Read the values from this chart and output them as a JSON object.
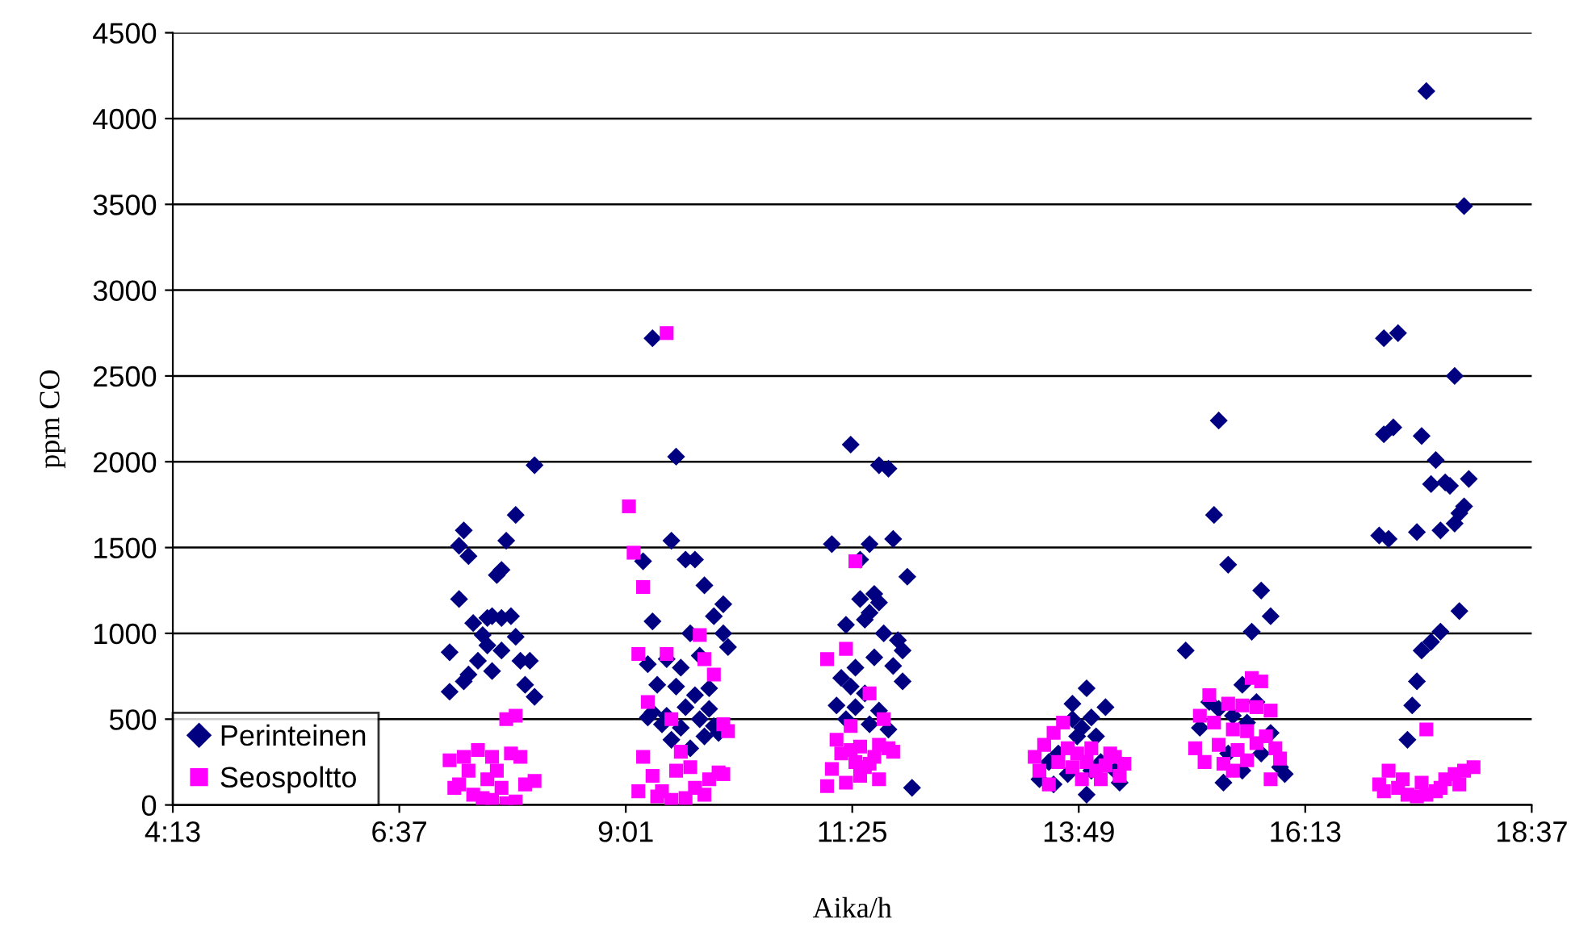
{
  "chart_data": {
    "type": "scatter",
    "xlabel": "Aika/h",
    "ylabel": "ppm CO",
    "xlim": [
      4.2167,
      18.6167
    ],
    "xticks": [
      {
        "value": 4.2167,
        "label": "4:13"
      },
      {
        "value": 6.6167,
        "label": "6:37"
      },
      {
        "value": 9.0167,
        "label": "9:01"
      },
      {
        "value": 11.4167,
        "label": "11:25"
      },
      {
        "value": 13.8167,
        "label": "13:49"
      },
      {
        "value": 16.2167,
        "label": "16:13"
      },
      {
        "value": 18.6167,
        "label": "18:37"
      }
    ],
    "ylim": [
      0,
      4500
    ],
    "yticks": [
      0,
      500,
      1000,
      1500,
      2000,
      2500,
      3000,
      3500,
      4000,
      4500
    ],
    "grid": "y",
    "legend": "bottom left",
    "series": [
      {
        "name": "Perinteinen",
        "color": "#000080",
        "marker": "diamond",
        "x": [
          8.05,
          7.85,
          7.3,
          7.25,
          7.35,
          7.75,
          7.65,
          7.7,
          7.25,
          7.4,
          7.55,
          7.7,
          7.8,
          7.6,
          7.85,
          7.15,
          7.35,
          7.45,
          7.55,
          7.7,
          7.9,
          8.0,
          7.3,
          7.6,
          7.95,
          7.15,
          8.05,
          7.5,
          9.3,
          9.55,
          9.2,
          9.3,
          9.5,
          9.65,
          9.75,
          9.85,
          9.7,
          9.95,
          10.05,
          10.1,
          10.05,
          9.25,
          9.45,
          9.6,
          9.8,
          9.35,
          9.55,
          9.75,
          9.9,
          9.3,
          9.45,
          9.65,
          9.8,
          9.6,
          9.4,
          9.95,
          9.5,
          9.7,
          9.85,
          10.0,
          9.25,
          9.9,
          11.4,
          11.7,
          11.8,
          11.2,
          11.6,
          11.85,
          11.5,
          12.0,
          11.5,
          11.65,
          11.7,
          11.55,
          11.6,
          11.35,
          11.75,
          11.9,
          11.95,
          11.45,
          11.3,
          11.65,
          11.85,
          11.4,
          11.55,
          11.25,
          11.45,
          11.7,
          11.35,
          11.6,
          11.8,
          12.05,
          11.95,
          13.9,
          14.1,
          13.75,
          13.95,
          13.85,
          14.0,
          13.8,
          13.6,
          13.4,
          13.5,
          13.7,
          13.95,
          14.2,
          14.05,
          13.9,
          13.55,
          14.25,
          13.75,
          15.3,
          15.25,
          15.4,
          15.75,
          15.85,
          15.65,
          14.95,
          15.55,
          15.2,
          15.3,
          15.6,
          15.45,
          15.85,
          15.75,
          15.1,
          15.4,
          15.55,
          15.35,
          15.95,
          15.7,
          16.0,
          17.5,
          17.9,
          17.05,
          17.2,
          17.8,
          17.05,
          17.15,
          17.45,
          17.4,
          17.0,
          17.1,
          17.6,
          17.7,
          17.75,
          17.8,
          17.85,
          17.9,
          17.95,
          17.65,
          17.55,
          17.85,
          17.65,
          17.55,
          17.45,
          17.4,
          17.35,
          17.3
        ],
        "values": [
          1980,
          1690,
          1600,
          1510,
          1450,
          1540,
          1340,
          1370,
          1200,
          1060,
          1090,
          1090,
          1100,
          1100,
          980,
          890,
          760,
          840,
          930,
          900,
          840,
          840,
          720,
          780,
          700,
          660,
          630,
          990,
          2720,
          2030,
          1420,
          1070,
          1540,
          1430,
          1430,
          1280,
          1000,
          1100,
          1170,
          920,
          1000,
          820,
          850,
          800,
          870,
          700,
          690,
          640,
          680,
          540,
          520,
          570,
          500,
          450,
          470,
          460,
          380,
          330,
          400,
          420,
          510,
          560,
          2100,
          1980,
          1960,
          1520,
          1520,
          1550,
          1430,
          1330,
          1200,
          1230,
          1180,
          1080,
          1120,
          1050,
          1000,
          960,
          900,
          800,
          740,
          860,
          810,
          690,
          650,
          580,
          570,
          550,
          500,
          470,
          440,
          100,
          720,
          680,
          570,
          590,
          510,
          450,
          400,
          400,
          300,
          150,
          250,
          180,
          200,
          200,
          250,
          60,
          120,
          130,
          500,
          2240,
          1690,
          1400,
          1250,
          1100,
          1010,
          900,
          700,
          600,
          560,
          480,
          520,
          420,
          300,
          450,
          300,
          200,
          130,
          220,
          600,
          180,
          4160,
          3490,
          2720,
          2750,
          2500,
          2160,
          2200,
          2150,
          1590,
          1570,
          1550,
          2010,
          1880,
          1860,
          1640,
          1700,
          1740,
          1900,
          1600,
          1870,
          1130,
          1010,
          950,
          900,
          720,
          580,
          380
        ]
      },
      {
        "name": "Seospoltto",
        "color": "#ff00ff",
        "marker": "square",
        "x": [
          7.75,
          7.85,
          7.15,
          7.3,
          7.45,
          7.6,
          7.8,
          7.9,
          7.35,
          7.55,
          7.7,
          7.25,
          7.4,
          7.6,
          7.85,
          7.95,
          8.05,
          7.5,
          7.75,
          7.2,
          7.65,
          9.45,
          9.05,
          9.1,
          9.2,
          9.15,
          9.45,
          9.8,
          9.85,
          9.95,
          9.25,
          9.5,
          9.2,
          9.6,
          10.05,
          10.1,
          9.3,
          9.15,
          9.35,
          9.5,
          9.65,
          9.75,
          9.9,
          10.0,
          9.85,
          9.4,
          9.55,
          10.05,
          9.7,
          11.45,
          11.15,
          11.35,
          11.6,
          11.75,
          11.4,
          11.7,
          11.25,
          11.5,
          11.3,
          11.45,
          11.55,
          11.65,
          11.8,
          11.2,
          11.35,
          11.5,
          11.7,
          11.15,
          11.85,
          11.6,
          11.4,
          13.65,
          13.55,
          13.45,
          13.35,
          13.4,
          13.6,
          13.7,
          13.8,
          13.9,
          14.0,
          14.1,
          14.2,
          14.3,
          13.85,
          14.05,
          14.25,
          13.5,
          13.75,
          14.15,
          13.95,
          15.65,
          15.75,
          15.2,
          15.4,
          15.55,
          15.7,
          15.85,
          15.1,
          15.25,
          15.45,
          15.6,
          15.8,
          15.05,
          15.3,
          15.5,
          15.7,
          15.9,
          15.15,
          15.35,
          15.6,
          15.95,
          15.85,
          15.45,
          17.5,
          17.0,
          17.1,
          17.2,
          17.3,
          17.4,
          17.5,
          17.6,
          17.7,
          17.8,
          17.9,
          18.0,
          17.05,
          17.25,
          17.65,
          17.85,
          17.45
        ],
        "values": [
          500,
          520,
          260,
          280,
          320,
          280,
          300,
          280,
          200,
          150,
          100,
          120,
          60,
          30,
          20,
          120,
          140,
          40,
          10,
          100,
          200,
          2750,
          1740,
          1470,
          1270,
          880,
          880,
          990,
          850,
          760,
          600,
          500,
          280,
          310,
          470,
          430,
          170,
          80,
          50,
          30,
          40,
          100,
          150,
          190,
          60,
          80,
          200,
          180,
          220,
          1420,
          850,
          910,
          650,
          500,
          460,
          350,
          380,
          340,
          300,
          250,
          220,
          280,
          330,
          210,
          130,
          170,
          150,
          110,
          310,
          240,
          320,
          480,
          420,
          350,
          280,
          200,
          250,
          330,
          300,
          250,
          200,
          230,
          280,
          240,
          150,
          150,
          170,
          120,
          220,
          300,
          330,
          740,
          720,
          640,
          590,
          580,
          570,
          550,
          520,
          480,
          440,
          430,
          400,
          330,
          350,
          320,
          360,
          330,
          250,
          240,
          260,
          270,
          150,
          200,
          440,
          120,
          200,
          100,
          60,
          50,
          60,
          80,
          150,
          180,
          200,
          220,
          80,
          150,
          100,
          120,
          130
        ]
      }
    ]
  }
}
